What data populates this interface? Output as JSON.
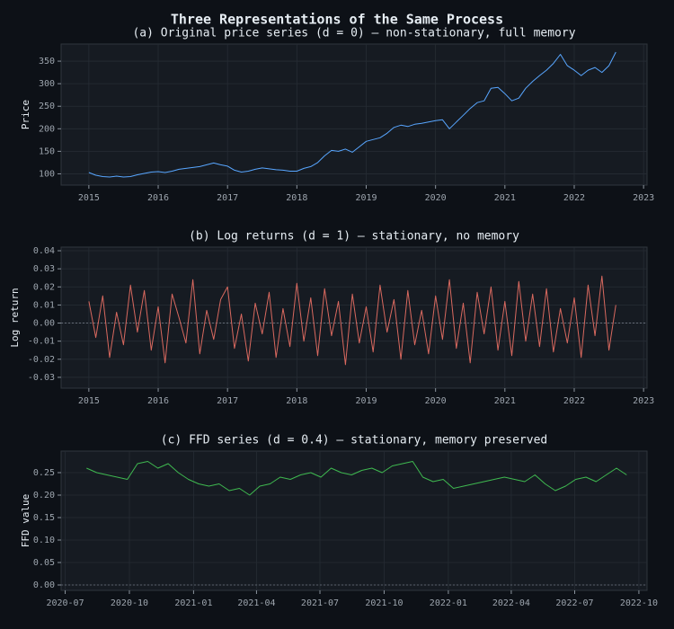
{
  "title": "Three Representations of the Same Process",
  "chart_data": [
    {
      "type": "line",
      "title": "(a) Original price series (d = 0) — non-stationary, full memory",
      "ylabel": "Price",
      "grid": true,
      "zero_line": false,
      "xlim": [
        2014.6,
        2023.05
      ],
      "xticks": [
        2015,
        2016,
        2017,
        2018,
        2019,
        2020,
        2021,
        2022,
        2023
      ],
      "ylim": [
        75,
        388
      ],
      "yticks": [
        100,
        150,
        200,
        250,
        300,
        350
      ],
      "series": [
        {
          "color": "#58a6ff",
          "x": [
            2015.0,
            2015.1,
            2015.2,
            2015.3,
            2015.4,
            2015.5,
            2015.6,
            2015.7,
            2015.8,
            2015.9,
            2016.0,
            2016.1,
            2016.2,
            2016.3,
            2016.4,
            2016.5,
            2016.6,
            2016.7,
            2016.8,
            2016.9,
            2017.0,
            2017.1,
            2017.2,
            2017.3,
            2017.4,
            2017.5,
            2017.6,
            2017.7,
            2017.8,
            2017.9,
            2018.0,
            2018.1,
            2018.2,
            2018.3,
            2018.4,
            2018.5,
            2018.6,
            2018.7,
            2018.8,
            2018.9,
            2019.0,
            2019.1,
            2019.2,
            2019.3,
            2019.4,
            2019.5,
            2019.6,
            2019.7,
            2019.8,
            2019.9,
            2020.0,
            2020.1,
            2020.2,
            2020.3,
            2020.4,
            2020.5,
            2020.6,
            2020.7,
            2020.8,
            2020.9,
            2021.0,
            2021.1,
            2021.2,
            2021.3,
            2021.4,
            2021.5,
            2021.6,
            2021.7,
            2021.8,
            2021.9,
            2022.0,
            2022.1,
            2022.2,
            2022.3,
            2022.4,
            2022.5,
            2022.6
          ],
          "values": [
            103,
            97,
            94,
            93,
            95,
            93,
            94,
            98,
            101,
            104,
            105,
            103,
            106,
            110,
            112,
            114,
            116,
            120,
            124,
            120,
            117,
            108,
            104,
            106,
            110,
            113,
            111,
            109,
            108,
            106,
            106,
            112,
            116,
            125,
            140,
            152,
            150,
            155,
            148,
            160,
            172,
            176,
            180,
            190,
            203,
            208,
            205,
            210,
            212,
            215,
            218,
            220,
            200,
            215,
            230,
            245,
            258,
            262,
            290,
            292,
            278,
            262,
            268,
            290,
            305,
            318,
            330,
            345,
            365,
            340,
            330,
            318,
            330,
            336,
            325,
            340,
            370
          ]
        }
      ]
    },
    {
      "type": "line",
      "title": "(b) Log returns (d = 1) — stationary, no memory",
      "ylabel": "Log return",
      "grid": true,
      "zero_line": true,
      "xlim": [
        2014.6,
        2023.05
      ],
      "xticks": [
        2015,
        2016,
        2017,
        2018,
        2019,
        2020,
        2021,
        2022,
        2023
      ],
      "ylim": [
        -0.036,
        0.042
      ],
      "yticks": [
        -0.03,
        -0.02,
        -0.01,
        {
          "value": 0,
          "label": "0.00"
        },
        0.01,
        0.02,
        0.03,
        0.04
      ],
      "series": [
        {
          "color": "#d9695f",
          "x": [
            2015.0,
            2015.1,
            2015.2,
            2015.3,
            2015.4,
            2015.5,
            2015.6,
            2015.7,
            2015.8,
            2015.9,
            2016.0,
            2016.1,
            2016.2,
            2016.3,
            2016.4,
            2016.5,
            2016.6,
            2016.7,
            2016.8,
            2016.9,
            2017.0,
            2017.1,
            2017.2,
            2017.3,
            2017.4,
            2017.5,
            2017.6,
            2017.7,
            2017.8,
            2017.9,
            2018.0,
            2018.1,
            2018.2,
            2018.3,
            2018.4,
            2018.5,
            2018.6,
            2018.7,
            2018.8,
            2018.9,
            2019.0,
            2019.1,
            2019.2,
            2019.3,
            2019.4,
            2019.5,
            2019.6,
            2019.7,
            2019.8,
            2019.9,
            2020.0,
            2020.1,
            2020.2,
            2020.3,
            2020.4,
            2020.5,
            2020.6,
            2020.7,
            2020.8,
            2020.9,
            2021.0,
            2021.1,
            2021.2,
            2021.3,
            2021.4,
            2021.5,
            2021.6,
            2021.7,
            2021.8,
            2021.9,
            2022.0,
            2022.1,
            2022.2,
            2022.3,
            2022.4,
            2022.5,
            2022.6
          ],
          "values": [
            0.012,
            -0.008,
            0.015,
            -0.019,
            0.006,
            -0.012,
            0.021,
            -0.005,
            0.018,
            -0.015,
            0.009,
            -0.022,
            0.016,
            0.003,
            -0.011,
            0.024,
            -0.017,
            0.007,
            -0.009,
            0.013,
            0.02,
            -0.014,
            0.005,
            -0.021,
            0.011,
            -0.006,
            0.017,
            -0.019,
            0.008,
            -0.013,
            0.022,
            -0.01,
            0.014,
            -0.018,
            0.019,
            -0.007,
            0.012,
            -0.023,
            0.016,
            -0.011,
            0.009,
            -0.016,
            0.021,
            -0.005,
            0.013,
            -0.02,
            0.018,
            -0.012,
            0.007,
            -0.017,
            0.015,
            -0.009,
            0.024,
            -0.014,
            0.011,
            -0.022,
            0.017,
            -0.006,
            0.02,
            -0.015,
            0.012,
            -0.018,
            0.023,
            -0.01,
            0.016,
            -0.013,
            0.019,
            -0.016,
            0.008,
            -0.011,
            0.014,
            -0.019,
            0.021,
            -0.007,
            0.026,
            -0.015,
            0.01
          ]
        }
      ]
    },
    {
      "type": "line",
      "title": "(c) FFD series (d = 0.4) — stationary, memory preserved",
      "ylabel": "FFD value",
      "grid": true,
      "zero_line": true,
      "xlim": [
        2020.48,
        2022.78
      ],
      "xticks": [
        {
          "value": 2020.496,
          "label": "2020-07"
        },
        {
          "value": 2020.748,
          "label": "2020-10"
        },
        {
          "value": 2021.0,
          "label": "2021-01"
        },
        {
          "value": 2021.247,
          "label": "2021-04"
        },
        {
          "value": 2021.496,
          "label": "2021-07"
        },
        {
          "value": 2021.748,
          "label": "2021-10"
        },
        {
          "value": 2022.0,
          "label": "2022-01"
        },
        {
          "value": 2022.247,
          "label": "2022-04"
        },
        {
          "value": 2022.496,
          "label": "2022-07"
        },
        {
          "value": 2022.748,
          "label": "2022-10"
        }
      ],
      "ylim": [
        -0.012,
        0.298
      ],
      "yticks": [
        {
          "value": 0,
          "label": "0.00"
        },
        0.05,
        {
          "value": 0.1,
          "label": "0.10"
        },
        0.15,
        {
          "value": 0.2,
          "label": "0.20"
        },
        0.25
      ],
      "series": [
        {
          "color": "#3fb950",
          "x": [
            2020.58,
            2020.62,
            2020.66,
            2020.7,
            2020.74,
            2020.78,
            2020.82,
            2020.86,
            2020.9,
            2020.94,
            2020.98,
            2021.02,
            2021.06,
            2021.1,
            2021.14,
            2021.18,
            2021.22,
            2021.26,
            2021.3,
            2021.34,
            2021.38,
            2021.42,
            2021.46,
            2021.5,
            2021.54,
            2021.58,
            2021.62,
            2021.66,
            2021.7,
            2021.74,
            2021.78,
            2021.82,
            2021.86,
            2021.9,
            2021.94,
            2021.98,
            2022.02,
            2022.06,
            2022.1,
            2022.14,
            2022.18,
            2022.22,
            2022.26,
            2022.3,
            2022.34,
            2022.38,
            2022.42,
            2022.46,
            2022.5,
            2022.54,
            2022.58,
            2022.62,
            2022.66,
            2022.7
          ],
          "values": [
            0.26,
            0.25,
            0.245,
            0.24,
            0.235,
            0.27,
            0.275,
            0.26,
            0.27,
            0.25,
            0.235,
            0.225,
            0.22,
            0.225,
            0.21,
            0.215,
            0.2,
            0.22,
            0.225,
            0.24,
            0.235,
            0.245,
            0.25,
            0.24,
            0.26,
            0.25,
            0.245,
            0.255,
            0.26,
            0.25,
            0.265,
            0.27,
            0.275,
            0.24,
            0.23,
            0.235,
            0.215,
            0.22,
            0.225,
            0.23,
            0.235,
            0.24,
            0.235,
            0.23,
            0.245,
            0.225,
            0.21,
            0.22,
            0.235,
            0.24,
            0.23,
            0.245,
            0.26,
            0.245
          ]
        }
      ]
    }
  ]
}
